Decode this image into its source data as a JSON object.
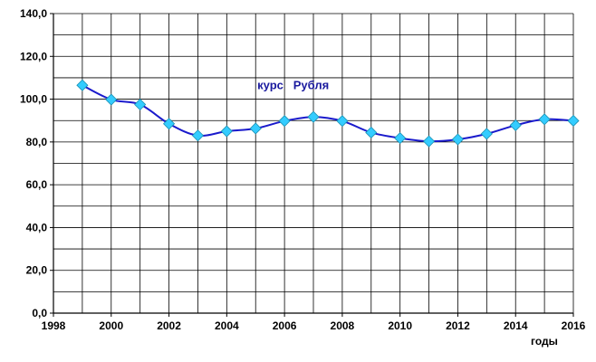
{
  "chart_data": {
    "type": "line",
    "title": "",
    "xlabel": "годы",
    "ylabel": "",
    "xlim": [
      1998,
      2016
    ],
    "ylim": [
      0,
      140
    ],
    "x_ticks": [
      "1998",
      "2000",
      "2002",
      "2004",
      "2006",
      "2008",
      "2010",
      "2012",
      "2014",
      "2016"
    ],
    "x_tick_values": [
      1998,
      2000,
      2002,
      2004,
      2006,
      2008,
      2010,
      2012,
      2014,
      2016
    ],
    "y_ticks": [
      "0,0",
      "20,0",
      "40,0",
      "60,0",
      "80,0",
      "100,0",
      "120,0",
      "140,0"
    ],
    "y_tick_values": [
      0,
      20,
      40,
      60,
      80,
      100,
      120,
      140
    ],
    "grid": true,
    "x_minor_step": 1,
    "y_minor_step": 10,
    "series": [
      {
        "name": "курс   Рубля",
        "color": "#1a1acc",
        "marker_color": "#33ccff",
        "marker": "diamond",
        "x": [
          1999,
          2000,
          2001,
          2002,
          2003,
          2004,
          2005,
          2006,
          2007,
          2008,
          2009,
          2010,
          2011,
          2012,
          2013,
          2014,
          2015,
          2016
        ],
        "values": [
          106.5,
          99.8,
          97.5,
          88.5,
          83.0,
          85.0,
          86.3,
          89.8,
          91.7,
          89.8,
          84.4,
          81.8,
          80.3,
          81.2,
          83.8,
          87.8,
          90.6,
          89.9
        ]
      }
    ]
  }
}
